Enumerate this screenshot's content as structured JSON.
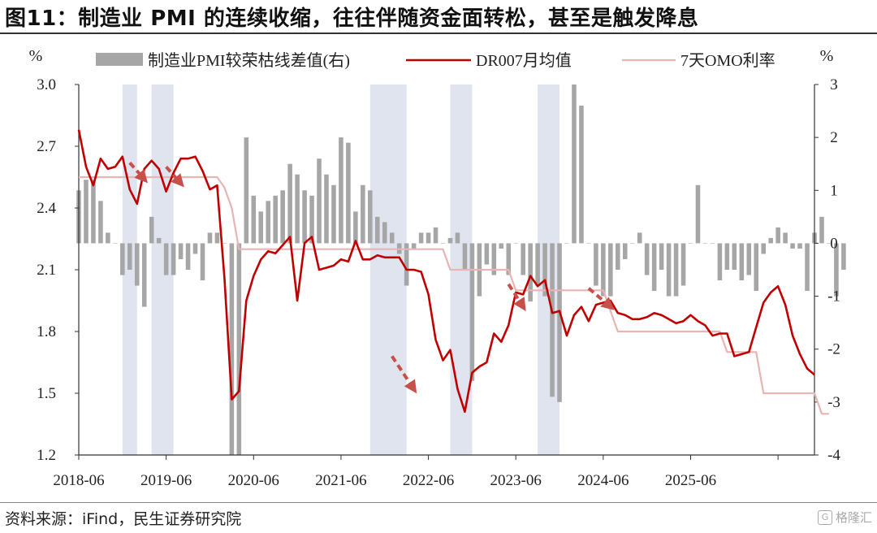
{
  "header": {
    "title": "图11：制造业 PMI 的连续收缩，往往伴随资金面转松，甚至是触发降息"
  },
  "footer": {
    "source": "资料来源：iFind，民生证券研究院",
    "watermark": "格隆汇"
  },
  "chart_data": {
    "type": "combo",
    "left_unit": "%",
    "right_unit": "%",
    "left_ylim": [
      1.2,
      3.0
    ],
    "right_ylim": [
      -4,
      3
    ],
    "left_ticks": [
      "3.0",
      "2.7",
      "2.4",
      "2.1",
      "1.8",
      "1.5",
      "1.2"
    ],
    "right_ticks": [
      "3",
      "2",
      "1",
      "0",
      "-1",
      "-2",
      "-3",
      "-4"
    ],
    "x_ticks": [
      "2018-06",
      "2019-06",
      "2020-06",
      "2021-06",
      "2022-06",
      "2023-06",
      "2024-06",
      "2025-06"
    ],
    "legend": [
      {
        "name": "制造业PMI较荣枯线差值(右)",
        "kind": "bar"
      },
      {
        "name": "DR007月均值",
        "kind": "line"
      },
      {
        "name": "7天OMO利率",
        "kind": "line"
      }
    ],
    "colors": {
      "bar": "#a6a6a6",
      "dr007": "#c00000",
      "omo": "#e8b4b4",
      "shade": "#dfe4ef",
      "arrow": "#c8504a"
    },
    "start_month": "2018-06",
    "series": [
      {
        "name": "制造业PMI较荣枯线差值(右)",
        "axis": "right",
        "type": "bar",
        "values": [
          1.0,
          1.2,
          1.2,
          0.8,
          0.2,
          0.0,
          -0.6,
          -0.5,
          -0.8,
          -1.2,
          0.5,
          0.1,
          -0.6,
          -0.6,
          -0.3,
          -0.5,
          -0.2,
          -0.7,
          0.2,
          0.2,
          0.0,
          -14.3,
          -14.3,
          2.0,
          0.9,
          0.6,
          0.8,
          0.9,
          1.0,
          1.5,
          1.3,
          1.0,
          0.9,
          1.6,
          1.3,
          1.1,
          2.0,
          1.9,
          0.6,
          1.1,
          1.0,
          0.5,
          0.4,
          0.2,
          -0.2,
          -0.8,
          -0.1,
          0.2,
          0.2,
          0.3,
          0.0,
          0.1,
          0.2,
          -0.5,
          -2.6,
          -1.0,
          -0.4,
          -0.6,
          -0.1,
          -0.6,
          0.0,
          -0.6,
          -1.1,
          -0.8,
          -1.0,
          -2.9,
          -3.0,
          0.0,
          3.6,
          2.6,
          0.0,
          -0.8,
          -1.0,
          -1.0,
          -0.5,
          -0.3,
          0.0,
          0.2,
          -0.6,
          -0.9,
          -0.5,
          -1.0,
          -1.0,
          -0.8,
          0.0,
          1.1,
          0.0,
          0.0,
          -0.7,
          -0.5,
          -0.5,
          -0.7,
          -0.6,
          -0.9,
          -0.2,
          0.1,
          0.3,
          0.2,
          -0.1,
          -0.1,
          -0.9,
          0.2,
          0.5,
          0.0,
          -1.0,
          -0.5
        ]
      },
      {
        "name": "DR007月均值",
        "axis": "left",
        "type": "line",
        "values": [
          2.78,
          2.6,
          2.51,
          2.64,
          2.59,
          2.6,
          2.65,
          2.49,
          2.42,
          2.59,
          2.63,
          2.59,
          2.48,
          2.57,
          2.64,
          2.64,
          2.65,
          2.58,
          2.49,
          2.51,
          2.06,
          1.47,
          1.51,
          1.95,
          2.07,
          2.15,
          2.19,
          2.18,
          2.22,
          2.26,
          1.95,
          2.23,
          2.26,
          2.1,
          2.11,
          2.12,
          2.15,
          2.14,
          2.24,
          2.15,
          2.15,
          2.17,
          2.16,
          2.16,
          2.16,
          2.1,
          2.1,
          2.09,
          1.98,
          1.76,
          1.66,
          1.71,
          1.52,
          1.41,
          1.6,
          1.63,
          1.65,
          1.79,
          1.75,
          1.83,
          1.99,
          1.98,
          2.07,
          2.02,
          2.05,
          1.89,
          1.9,
          1.78,
          1.88,
          1.92,
          1.85,
          1.93,
          1.94,
          1.95,
          1.89,
          1.88,
          1.86,
          1.86,
          1.87,
          1.89,
          1.88,
          1.86,
          1.84,
          1.85,
          1.88,
          1.85,
          1.83,
          1.78,
          1.79,
          1.79,
          1.68,
          1.69,
          1.7,
          1.82,
          1.94,
          1.99,
          2.02,
          1.93,
          1.78,
          1.69,
          1.62,
          1.59
        ]
      },
      {
        "name": "7天OMO利率",
        "axis": "left",
        "type": "line",
        "values": [
          2.55,
          2.55,
          2.55,
          2.55,
          2.55,
          2.55,
          2.55,
          2.55,
          2.55,
          2.55,
          2.55,
          2.55,
          2.55,
          2.55,
          2.55,
          2.55,
          2.55,
          2.55,
          2.55,
          2.55,
          2.5,
          2.4,
          2.2,
          2.2,
          2.2,
          2.2,
          2.2,
          2.2,
          2.2,
          2.2,
          2.2,
          2.2,
          2.2,
          2.2,
          2.2,
          2.2,
          2.2,
          2.2,
          2.2,
          2.2,
          2.2,
          2.2,
          2.2,
          2.2,
          2.2,
          2.2,
          2.2,
          2.2,
          2.2,
          2.2,
          2.2,
          2.1,
          2.1,
          2.1,
          2.1,
          2.1,
          2.1,
          2.1,
          2.1,
          2.1,
          2.0,
          2.0,
          2.0,
          2.0,
          2.0,
          2.0,
          2.0,
          2.0,
          2.0,
          2.0,
          2.0,
          2.0,
          2.0,
          1.9,
          1.8,
          1.8,
          1.8,
          1.8,
          1.8,
          1.8,
          1.8,
          1.8,
          1.8,
          1.8,
          1.8,
          1.8,
          1.8,
          1.8,
          1.8,
          1.7,
          1.7,
          1.7,
          1.7,
          1.7,
          1.5,
          1.5,
          1.5,
          1.5,
          1.5,
          1.5,
          1.5,
          1.5,
          1.4,
          1.4
        ]
      }
    ],
    "shaded_periods": [
      [
        "2018-12",
        "2019-02"
      ],
      [
        "2019-04",
        "2019-07"
      ],
      [
        "2021-10",
        "2022-03"
      ],
      [
        "2022-09",
        "2022-12"
      ],
      [
        "2023-09",
        "2023-12"
      ]
    ],
    "arrows": [
      {
        "from": [
          "2019-01",
          2.62
        ],
        "to": [
          "2019-03",
          2.54
        ]
      },
      {
        "from": [
          "2019-06",
          2.6
        ],
        "to": [
          "2019-08",
          2.52
        ]
      },
      {
        "from": [
          "2022-01",
          1.68
        ],
        "to": [
          "2022-04",
          1.52
        ]
      },
      {
        "from": [
          "2023-05",
          2.03
        ],
        "to": [
          "2023-07",
          1.92
        ]
      },
      {
        "from": [
          "2024-04",
          2.01
        ],
        "to": [
          "2024-07",
          1.92
        ]
      }
    ]
  }
}
